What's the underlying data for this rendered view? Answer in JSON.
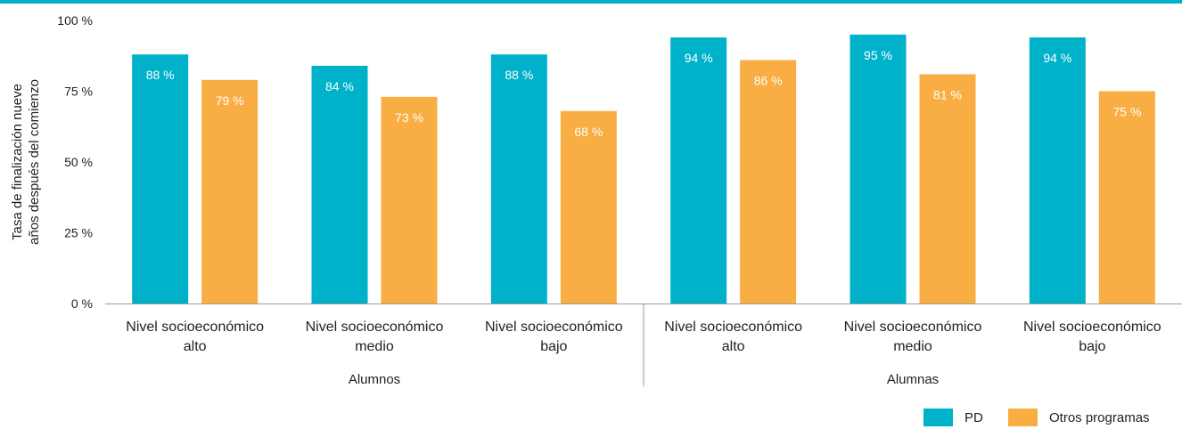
{
  "chart_data": {
    "type": "bar",
    "ylabel": [
      "Tasa de finalización nueve",
      "años después del comienzo"
    ],
    "ylim": [
      0,
      100
    ],
    "yticks": [
      "0 %",
      "25 %",
      "50 %",
      "75 %",
      "100 %"
    ],
    "ytick_values": [
      0,
      25,
      50,
      75,
      100
    ],
    "categories": [
      [
        "Nivel socioeconómico",
        "alto"
      ],
      [
        "Nivel socioeconómico",
        "medio"
      ],
      [
        "Nivel socioeconómico",
        "bajo"
      ],
      [
        "Nivel socioeconómico",
        "alto"
      ],
      [
        "Nivel socioeconómico",
        "medio"
      ],
      [
        "Nivel socioeconómico",
        "bajo"
      ]
    ],
    "groups": [
      {
        "label": "Alumnos",
        "categories": [
          0,
          1,
          2
        ]
      },
      {
        "label": "Alumnas",
        "categories": [
          3,
          4,
          5
        ]
      }
    ],
    "series": [
      {
        "name": "PD",
        "color": "#00b2c9",
        "values": [
          88,
          84,
          88,
          94,
          95,
          94
        ],
        "labels": [
          "88 %",
          "84 %",
          "88 %",
          "94 %",
          "95 %",
          "94 %"
        ]
      },
      {
        "name": "Otros programas",
        "color": "#f8ae42",
        "values": [
          79,
          73,
          68,
          86,
          81,
          75
        ],
        "labels": [
          "79 %",
          "73 %",
          "68 %",
          "86 %",
          "81 %",
          "75 %"
        ]
      }
    ],
    "grid": false,
    "legend_position": "bottom-right"
  }
}
